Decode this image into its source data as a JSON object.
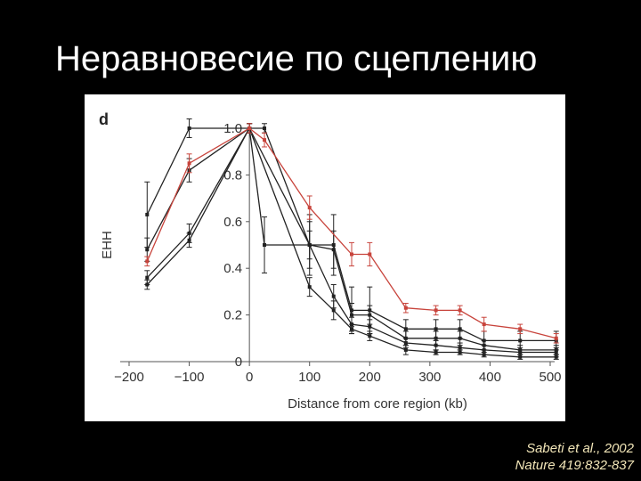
{
  "slide": {
    "title": "Неравновесие по сцеплению",
    "citation_line1": "Sabeti et al., 2002",
    "citation_line2": "Nature 419:832-837"
  },
  "chart_data": {
    "type": "line",
    "panel_label": "d",
    "title": "",
    "xlabel": "Distance from core region (kb)",
    "ylabel": "EHH",
    "xlim": [
      -200,
      520
    ],
    "ylim": [
      0,
      1.05
    ],
    "x_ticks": [
      -200,
      -100,
      0,
      100,
      200,
      300,
      400,
      500
    ],
    "x_tick_labels": [
      "−200",
      "−100",
      "0",
      "100",
      "200",
      "300",
      "400",
      "500"
    ],
    "y_ticks": [
      0,
      0.2,
      0.4,
      0.6,
      0.8,
      1.0
    ],
    "y_tick_labels": [
      "0",
      "0.2",
      "0.4",
      "0.6",
      "0.8",
      "1.0"
    ],
    "grid": false,
    "colors": {
      "highlight": "#c8443c",
      "other": "#222222"
    },
    "series": [
      {
        "color": "#c8443c",
        "x": [
          -170,
          -100,
          0,
          25,
          100,
          170,
          200,
          260,
          310,
          350,
          390,
          450,
          510
        ],
        "y": [
          0.43,
          0.85,
          1.0,
          0.95,
          0.66,
          0.46,
          0.46,
          0.23,
          0.22,
          0.22,
          0.16,
          0.14,
          0.1
        ],
        "err": [
          0.02,
          0.04,
          0.02,
          0.03,
          0.05,
          0.05,
          0.05,
          0.02,
          0.02,
          0.02,
          0.03,
          0.02,
          0.02
        ]
      },
      {
        "color": "#222222",
        "x": [
          -170,
          -100,
          0,
          25,
          100,
          140,
          170,
          200,
          260,
          310,
          350,
          390,
          450,
          510
        ],
        "y": [
          0.63,
          1.0,
          1.0,
          1.0,
          0.5,
          0.5,
          0.22,
          0.22,
          0.14,
          0.14,
          0.14,
          0.09,
          0.09,
          0.09
        ],
        "err": [
          0.14,
          0.04,
          0.02,
          0.02,
          0.13,
          0.13,
          0.1,
          0.1,
          0.04,
          0.04,
          0.04,
          0.04,
          0.04,
          0.04
        ]
      },
      {
        "color": "#222222",
        "x": [
          -170,
          -100,
          0,
          25,
          100,
          140,
          170,
          200,
          260,
          310,
          350,
          390,
          450,
          510
        ],
        "y": [
          0.48,
          0.82,
          1.0,
          0.5,
          0.5,
          0.48,
          0.2,
          0.2,
          0.1,
          0.1,
          0.1,
          0.07,
          0.05,
          0.05
        ],
        "err": [
          0.05,
          0.05,
          0.02,
          0.12,
          0.1,
          0.08,
          0.05,
          0.04,
          0.03,
          0.03,
          0.03,
          0.02,
          0.02,
          0.02
        ]
      },
      {
        "color": "#222222",
        "x": [
          -170,
          -100,
          0,
          100,
          140,
          170,
          200,
          260,
          310,
          350,
          390,
          450,
          510
        ],
        "y": [
          0.36,
          0.55,
          1.0,
          0.5,
          0.28,
          0.16,
          0.15,
          0.08,
          0.07,
          0.06,
          0.05,
          0.04,
          0.04
        ],
        "err": [
          0.03,
          0.04,
          0.02,
          0.06,
          0.05,
          0.03,
          0.03,
          0.02,
          0.02,
          0.02,
          0.02,
          0.02,
          0.02
        ]
      },
      {
        "color": "#222222",
        "x": [
          -170,
          -100,
          0,
          100,
          140,
          170,
          200,
          260,
          310,
          350,
          390,
          450,
          510
        ],
        "y": [
          0.33,
          0.52,
          1.0,
          0.32,
          0.22,
          0.14,
          0.11,
          0.05,
          0.04,
          0.04,
          0.03,
          0.02,
          0.02
        ],
        "err": [
          0.02,
          0.03,
          0.02,
          0.04,
          0.04,
          0.02,
          0.02,
          0.02,
          0.01,
          0.01,
          0.01,
          0.01,
          0.01
        ]
      }
    ]
  }
}
